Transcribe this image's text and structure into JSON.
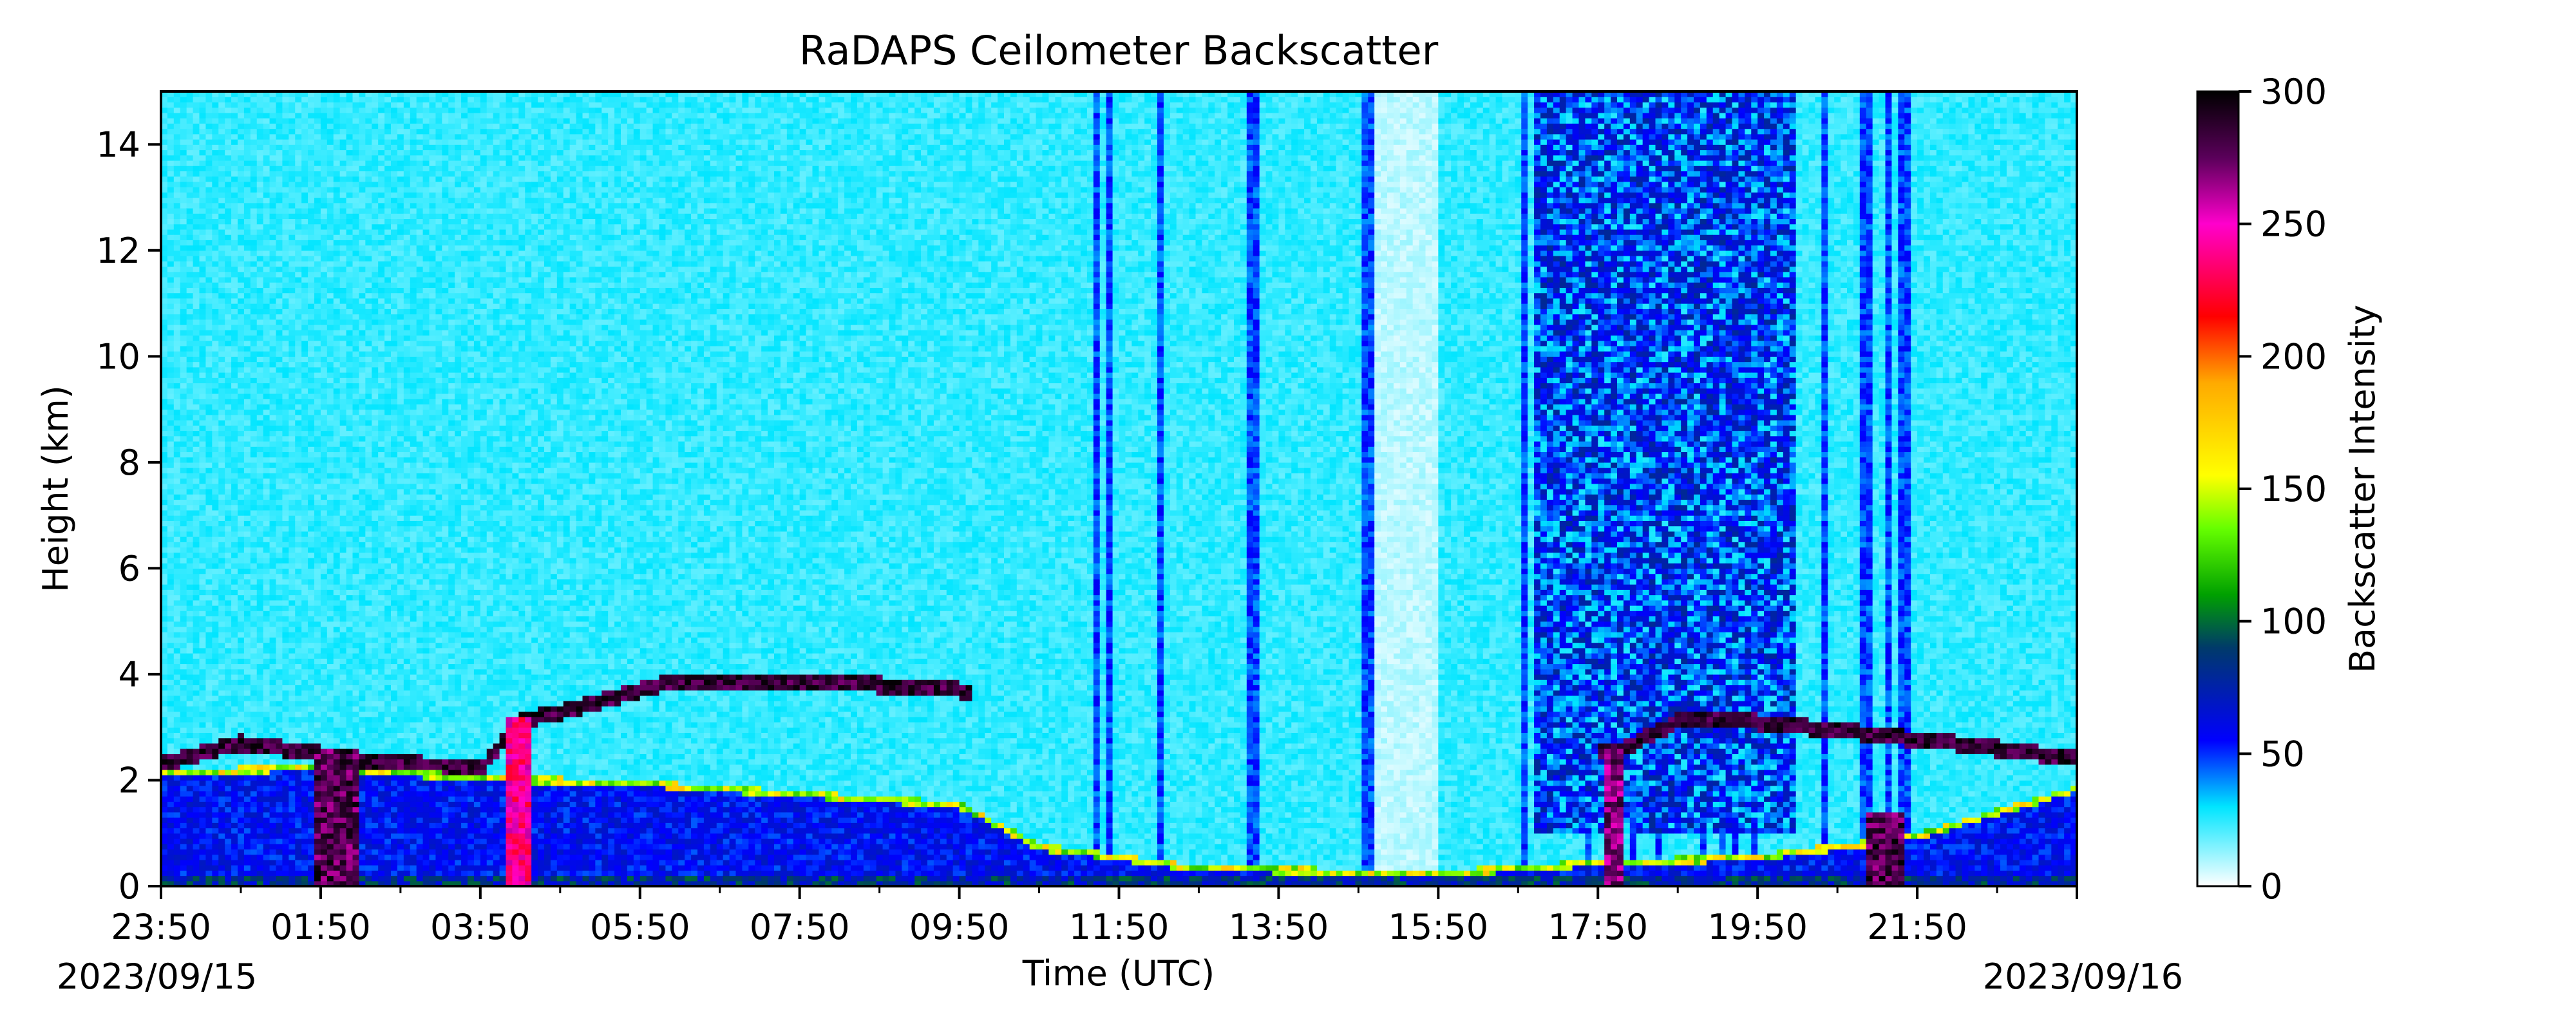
{
  "chart_data": {
    "type": "heatmap",
    "title": "RaDAPS Ceilometer Backscatter",
    "xlabel": "Time (UTC)",
    "ylabel": "Height (km)",
    "x_ticks": [
      "23:50",
      "01:50",
      "03:50",
      "05:50",
      "07:50",
      "09:50",
      "11:50",
      "13:50",
      "15:50",
      "17:50",
      "19:50",
      "21:50"
    ],
    "x_range_hours": [
      0,
      24
    ],
    "date_start": "2023/09/15",
    "date_end": "2023/09/16",
    "y_ticks": [
      0,
      2,
      4,
      6,
      8,
      10,
      12,
      14
    ],
    "ylim": [
      0,
      15
    ],
    "colorbar": {
      "label": "Backscatter Intensity",
      "range": [
        0,
        300
      ],
      "ticks": [
        0,
        50,
        100,
        150,
        200,
        250,
        300
      ],
      "colormap": [
        [
          0,
          "#ffffff"
        ],
        [
          30,
          "#00e5ff"
        ],
        [
          55,
          "#0000ff"
        ],
        [
          90,
          "#003a6a"
        ],
        [
          110,
          "#00a000"
        ],
        [
          135,
          "#66ff00"
        ],
        [
          155,
          "#ffff00"
        ],
        [
          190,
          "#ffaa00"
        ],
        [
          215,
          "#ff0000"
        ],
        [
          250,
          "#ff00cc"
        ],
        [
          275,
          "#5a005a"
        ],
        [
          300,
          "#000000"
        ]
      ]
    },
    "features": {
      "cloud_top_km": [
        {
          "t": 0.0,
          "h": 2.3
        },
        {
          "t": 1.0,
          "h": 2.7
        },
        {
          "t": 2.5,
          "h": 2.4
        },
        {
          "t": 4.0,
          "h": 2.2
        },
        {
          "t": 4.5,
          "h": 3.1
        },
        {
          "t": 5.5,
          "h": 3.5
        },
        {
          "t": 6.5,
          "h": 3.9
        },
        {
          "t": 8.0,
          "h": 3.9
        },
        {
          "t": 10.0,
          "h": 3.7
        },
        {
          "t": 18.2,
          "h": 2.5
        },
        {
          "t": 19.0,
          "h": 3.1
        },
        {
          "t": 20.0,
          "h": 3.1
        },
        {
          "t": 22.5,
          "h": 2.7
        },
        {
          "t": 24.0,
          "h": 2.4
        }
      ],
      "boundary_layer_top_km": [
        {
          "t": 0.0,
          "h": 2.2
        },
        {
          "t": 2.0,
          "h": 2.3
        },
        {
          "t": 4.0,
          "h": 2.1
        },
        {
          "t": 6.0,
          "h": 2.0
        },
        {
          "t": 8.0,
          "h": 1.8
        },
        {
          "t": 10.0,
          "h": 1.6
        },
        {
          "t": 11.0,
          "h": 0.8
        },
        {
          "t": 13.0,
          "h": 0.4
        },
        {
          "t": 16.0,
          "h": 0.3
        },
        {
          "t": 18.0,
          "h": 0.5
        },
        {
          "t": 20.0,
          "h": 0.6
        },
        {
          "t": 22.0,
          "h": 1.0
        },
        {
          "t": 24.0,
          "h": 1.9
        }
      ],
      "precip_shafts": [
        {
          "t": 2.2,
          "width_h": 0.6,
          "top_km": 2.6,
          "intensity": 300
        },
        {
          "t": 4.5,
          "width_h": 0.3,
          "top_km": 3.2,
          "intensity": 260
        },
        {
          "t": 18.2,
          "width_h": 0.3,
          "top_km": 2.6,
          "intensity": 290
        },
        {
          "t": 21.6,
          "width_h": 0.4,
          "top_km": 1.4,
          "intensity": 300
        }
      ],
      "clear_band_hours": [
        15.2,
        16.0
      ],
      "noisy_band_hours": [
        17.2,
        20.5
      ]
    }
  }
}
